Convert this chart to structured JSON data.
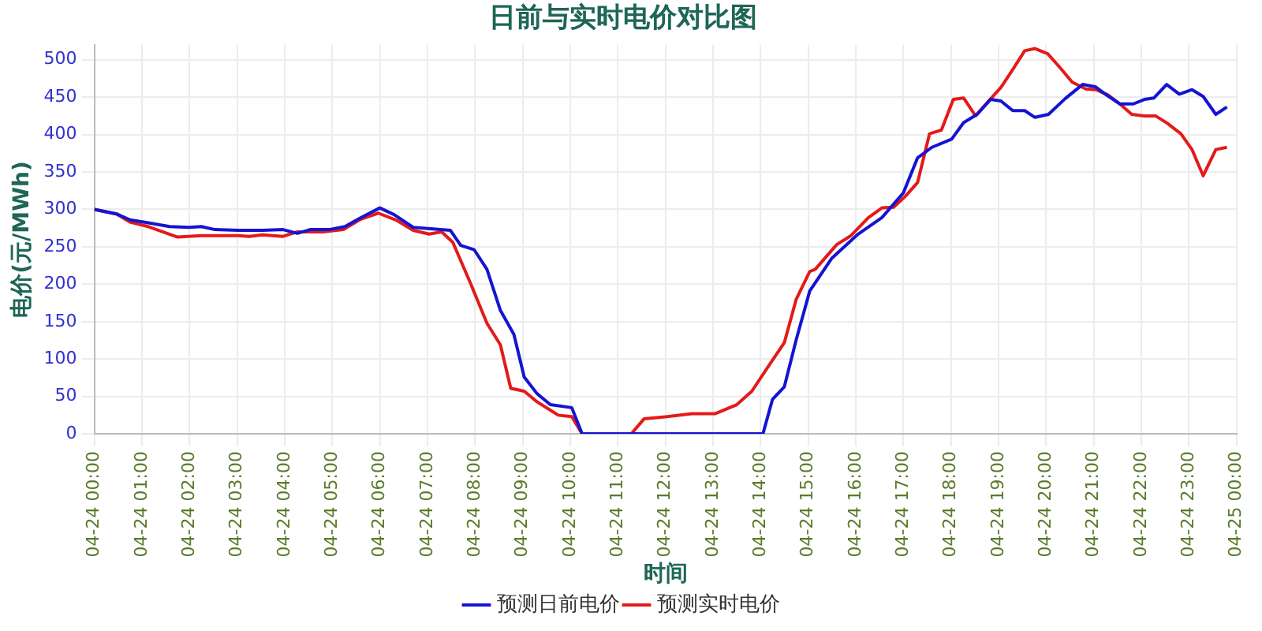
{
  "chart_data": {
    "type": "line",
    "title": "日前与实时电价对比图",
    "xlabel": "时间",
    "ylabel": "电价(元/MWh)",
    "xlim": [
      "--04-24T00:00",
      "--04-25T00:00"
    ],
    "xticks": [
      {
        "value": "--04-24T00:00",
        "label": "04-24 00:00"
      },
      {
        "value": "--04-24T01:00",
        "label": "04-24 01:00"
      },
      {
        "value": "--04-24T02:00",
        "label": "04-24 02:00"
      },
      {
        "value": "--04-24T03:00",
        "label": "04-24 03:00"
      },
      {
        "value": "--04-24T04:00",
        "label": "04-24 04:00"
      },
      {
        "value": "--04-24T05:00",
        "label": "04-24 05:00"
      },
      {
        "value": "--04-24T06:00",
        "label": "04-24 06:00"
      },
      {
        "value": "--04-24T07:00",
        "label": "04-24 07:00"
      },
      {
        "value": "--04-24T08:00",
        "label": "04-24 08:00"
      },
      {
        "value": "--04-24T09:00",
        "label": "04-24 09:00"
      },
      {
        "value": "--04-24T10:00",
        "label": "04-24 10:00"
      },
      {
        "value": "--04-24T11:00",
        "label": "04-24 11:00"
      },
      {
        "value": "--04-24T12:00",
        "label": "04-24 12:00"
      },
      {
        "value": "--04-24T13:00",
        "label": "04-24 13:00"
      },
      {
        "value": "--04-24T14:00",
        "label": "04-24 14:00"
      },
      {
        "value": "--04-24T15:00",
        "label": "04-24 15:00"
      },
      {
        "value": "--04-24T16:00",
        "label": "04-24 16:00"
      },
      {
        "value": "--04-24T17:00",
        "label": "04-24 17:00"
      },
      {
        "value": "--04-24T18:00",
        "label": "04-24 18:00"
      },
      {
        "value": "--04-24T19:00",
        "label": "04-24 19:00"
      },
      {
        "value": "--04-24T20:00",
        "label": "04-24 20:00"
      },
      {
        "value": "--04-24T21:00",
        "label": "04-24 21:00"
      },
      {
        "value": "--04-24T22:00",
        "label": "04-24 22:00"
      },
      {
        "value": "--04-24T23:00",
        "label": "04-24 23:00"
      },
      {
        "value": "--04-25T00:00",
        "label": "04-25 00:00"
      }
    ],
    "ylim": [
      0,
      520
    ],
    "yticks": [
      0,
      50,
      100,
      150,
      200,
      250,
      300,
      350,
      400,
      450,
      500
    ],
    "grid": true,
    "legend": "bottom",
    "marker": "none",
    "series": [
      {
        "name": "预测日前电价",
        "color": "#1414d2",
        "x": [
          "--04-24T00:00",
          "--04-24T00:28",
          "--04-24T00:45",
          "--04-24T01:08",
          "--04-24T01:35",
          "--04-24T01:59",
          "--04-24T02:15",
          "--04-24T02:32",
          "--04-24T03:02",
          "--04-24T03:32",
          "--04-24T03:58",
          "--04-24T04:16",
          "--04-24T04:32",
          "--04-24T04:56",
          "--04-24T05:16",
          "--04-24T05:36",
          "--04-24T06:00",
          "--04-24T06:18",
          "--04-24T06:42",
          "--04-24T07:29",
          "--04-24T07:42",
          "--04-24T07:59",
          "--04-24T08:15",
          "--04-24T08:32",
          "--04-24T08:49",
          "--04-24T09:02",
          "--04-24T09:18",
          "--04-24T09:35",
          "--04-24T10:02",
          "--04-24T10:15",
          "--04-24T11:00",
          "--04-24T12:00",
          "--04-24T13:00",
          "--04-24T14:03",
          "--04-24T14:15",
          "--04-24T14:30",
          "--04-24T14:45",
          "--04-24T15:02",
          "--04-24T15:30",
          "--04-24T16:03",
          "--04-24T16:33",
          "--04-24T17:00",
          "--04-24T17:18",
          "--04-24T17:36",
          "--04-24T18:01",
          "--04-24T18:16",
          "--04-24T18:33",
          "--04-24T18:50",
          "--04-24T19:03",
          "--04-24T19:18",
          "--04-24T19:33",
          "--04-24T19:46",
          "--04-24T20:03",
          "--04-24T20:24",
          "--04-24T20:46",
          "--04-24T21:02",
          "--04-24T21:16",
          "--04-24T21:33",
          "--04-24T21:50",
          "--04-24T22:04",
          "--04-24T22:16",
          "--04-24T22:32",
          "--04-24T22:48",
          "--04-24T23:04",
          "--04-24T23:18",
          "--04-24T23:34",
          "--04-24T23:48"
        ],
        "values": [
          300,
          294,
          286,
          282,
          277,
          276,
          277,
          273,
          272,
          272,
          273,
          268,
          273,
          273,
          277,
          289,
          302,
          293,
          276,
          272,
          252,
          246,
          220,
          165,
          133,
          76,
          54,
          39,
          35,
          0,
          0,
          0,
          0,
          0,
          46,
          63,
          126,
          191,
          235,
          267,
          289,
          322,
          369,
          383,
          394,
          416,
          427,
          447,
          445,
          432,
          432,
          423,
          427,
          448,
          467,
          464,
          453,
          441,
          441,
          447,
          449,
          467,
          454,
          460,
          451,
          427,
          437
        ]
      },
      {
        "name": "预测实时电价",
        "color": "#e41a1a",
        "x": [
          "--04-24T00:00",
          "--04-24T00:28",
          "--04-24T00:45",
          "--04-24T01:08",
          "--04-24T01:45",
          "--04-24T02:15",
          "--04-24T03:02",
          "--04-24T03:15",
          "--04-24T03:32",
          "--04-24T03:58",
          "--04-24T04:16",
          "--04-24T04:48",
          "--04-24T05:14",
          "--04-24T05:36",
          "--04-24T05:58",
          "--04-24T06:22",
          "--04-24T06:42",
          "--04-24T07:02",
          "--04-24T07:18",
          "--04-24T07:32",
          "--04-24T07:54",
          "--04-24T08:15",
          "--04-24T08:32",
          "--04-24T08:45",
          "--04-24T09:02",
          "--04-24T09:18",
          "--04-24T09:45",
          "--04-24T10:02",
          "--04-24T10:15",
          "--04-24T11:17",
          "--04-24T11:33",
          "--04-24T12:02",
          "--04-24T12:33",
          "--04-24T13:03",
          "--04-24T13:30",
          "--04-24T13:49",
          "--04-24T14:09",
          "--04-24T14:30",
          "--04-24T14:45",
          "--04-24T15:02",
          "--04-24T15:09",
          "--04-24T15:36",
          "--04-24T15:54",
          "--04-24T16:16",
          "--04-24T16:33",
          "--04-24T16:48",
          "--04-24T17:03",
          "--04-24T17:18",
          "--04-24T17:33",
          "--04-24T17:48",
          "--04-24T18:03",
          "--04-24T18:16",
          "--04-24T18:31",
          "--04-24T18:46",
          "--04-24T19:03",
          "--04-24T19:18",
          "--04-24T19:33",
          "--04-24T19:46",
          "--04-24T20:02",
          "--04-24T20:18",
          "--04-24T20:33",
          "--04-24T20:50",
          "--04-24T21:03",
          "--04-24T21:18",
          "--04-24T21:33",
          "--04-24T21:48",
          "--04-24T22:04",
          "--04-24T22:18",
          "--04-24T22:33",
          "--04-24T22:50",
          "--04-24T23:04",
          "--04-24T23:18",
          "--04-24T23:34",
          "--04-24T23:48"
        ],
        "values": [
          300,
          294,
          283,
          277,
          263,
          265,
          265,
          264,
          266,
          264,
          270,
          270,
          273,
          287,
          295,
          285,
          272,
          267,
          270,
          256,
          202,
          148,
          119,
          61,
          57,
          43,
          25,
          23,
          0,
          0,
          20,
          23,
          27,
          27,
          39,
          57,
          89,
          122,
          180,
          217,
          220,
          253,
          265,
          289,
          302,
          303,
          318,
          336,
          401,
          406,
          447,
          449,
          425,
          443,
          463,
          487,
          512,
          515,
          508,
          489,
          470,
          461,
          460,
          453,
          441,
          427,
          425,
          425,
          415,
          401,
          380,
          345,
          380,
          383
        ]
      }
    ]
  }
}
